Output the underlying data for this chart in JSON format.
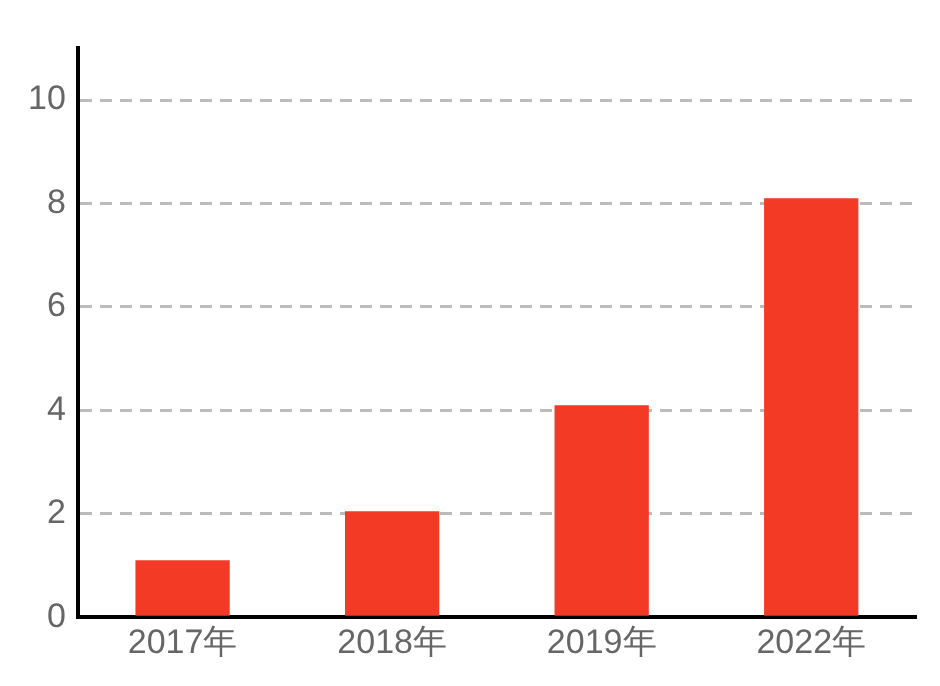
{
  "chart_data": {
    "type": "bar",
    "categories": [
      "2017年",
      "2018年",
      "2019年",
      "2022年"
    ],
    "values": [
      1.1,
      2.05,
      4.1,
      8.1
    ],
    "color": "#f23a24",
    "ylim": [
      0,
      11
    ],
    "yticks": [
      0,
      2,
      4,
      6,
      8,
      10
    ],
    "grid": "y",
    "legend": false
  }
}
